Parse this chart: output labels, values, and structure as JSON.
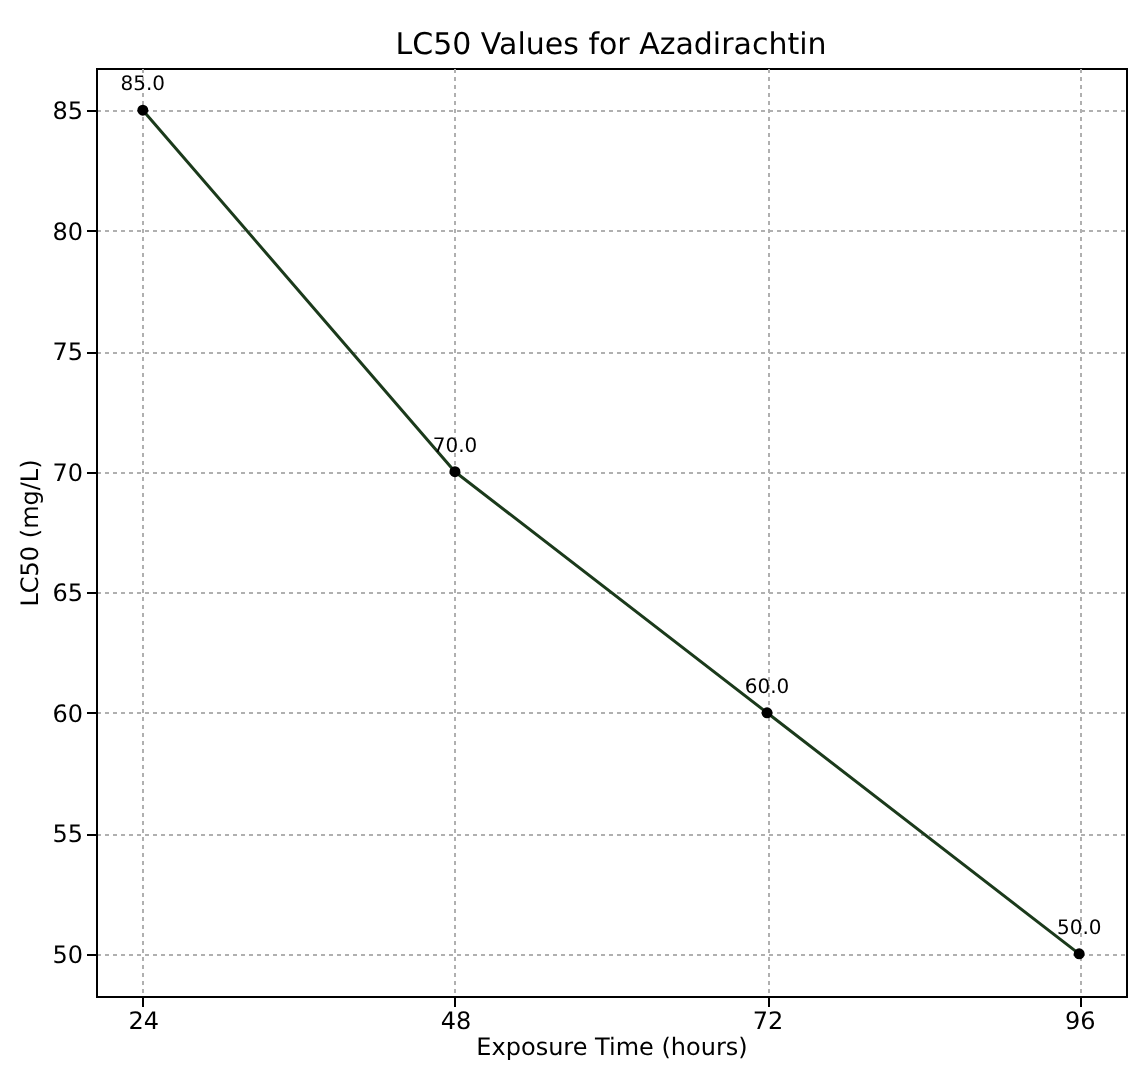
{
  "chart_data": {
    "type": "line",
    "title": "LC50 Values for Azadirachtin",
    "xlabel": "Exposure Time (hours)",
    "ylabel": "LC50 (mg/L)",
    "x": [
      24,
      48,
      72,
      96
    ],
    "series": [
      {
        "color": "#1b3a1b",
        "values": [
          85,
          70,
          60,
          50
        ],
        "value_labels": [
          "85.0",
          "70.0",
          "60.0",
          "50.0"
        ]
      }
    ],
    "xlim": [
      20.4,
      99.6
    ],
    "xticks": [
      24,
      48,
      72,
      96
    ],
    "ylim": [
      48.25,
      86.75
    ],
    "yticks": [
      50,
      55,
      60,
      65,
      70,
      75,
      80,
      85
    ],
    "grid": true,
    "marker": "circle",
    "line_style": "solid"
  }
}
